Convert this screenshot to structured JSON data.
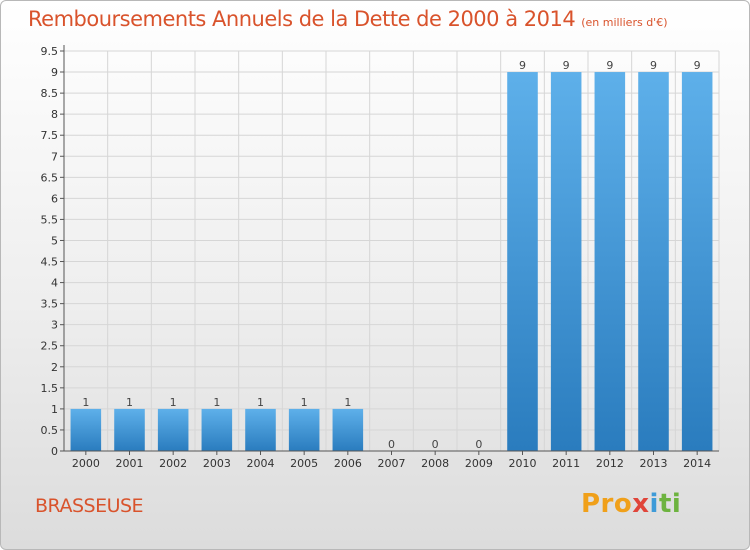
{
  "header": {
    "title": "Remboursements Annuels de la Dette de 2000 à 2014",
    "unit": "(en milliers d'€)"
  },
  "footer": {
    "commune": "BRASSEUSE",
    "brand_parts": [
      "Pro",
      "x",
      "i",
      "ti"
    ]
  },
  "colors": {
    "title": "#d9532c",
    "bar_light": "#5eb0ea",
    "bar_dark": "#2a7cbe",
    "grid": "#d6d6d6"
  },
  "chart_data": {
    "type": "bar",
    "title": "Remboursements Annuels de la Dette de 2000 à 2014",
    "subtitle": "(en milliers d'€)",
    "categories": [
      "2000",
      "2001",
      "2002",
      "2003",
      "2004",
      "2005",
      "2006",
      "2007",
      "2008",
      "2009",
      "2010",
      "2011",
      "2012",
      "2013",
      "2014"
    ],
    "values": [
      1,
      1,
      1,
      1,
      1,
      1,
      1,
      0,
      0,
      0,
      9,
      9,
      9,
      9,
      9
    ],
    "yticks": [
      "0",
      "0.5",
      "1",
      "1.5",
      "2",
      "2.5",
      "3",
      "3.5",
      "4",
      "4.5",
      "5",
      "5.5",
      "6",
      "6.5",
      "7",
      "7.5",
      "8",
      "8.5",
      "9",
      "9.5"
    ],
    "ylim": [
      0,
      9.5
    ],
    "grid": true,
    "xlabel": "",
    "ylabel": ""
  }
}
